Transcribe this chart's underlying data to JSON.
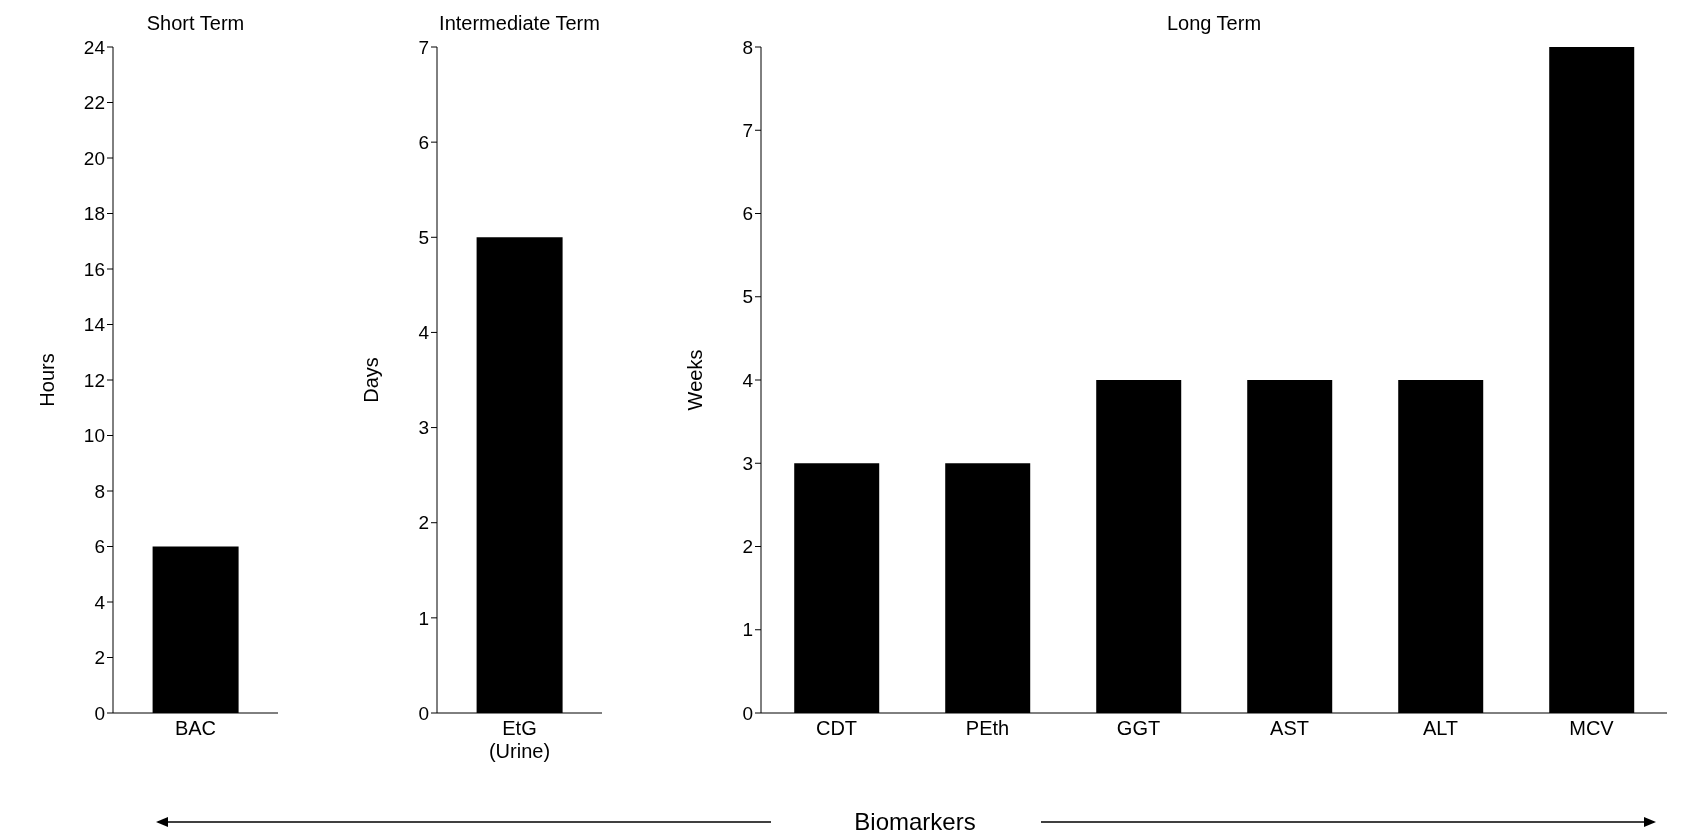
{
  "chart_data": [
    {
      "type": "bar",
      "title": "Short Term",
      "ylabel": "Hours",
      "categories": [
        "BAC"
      ],
      "values": [
        6
      ],
      "color": "#000000",
      "ylim": [
        0,
        24
      ],
      "yticks": [
        0,
        2,
        4,
        6,
        8,
        10,
        12,
        14,
        16,
        18,
        20,
        22,
        24
      ]
    },
    {
      "type": "bar",
      "title": "Intermediate Term",
      "ylabel": "Days",
      "categories": [
        "EtG (Urine)"
      ],
      "values": [
        5
      ],
      "color": "#000000",
      "ylim": [
        0,
        7
      ],
      "yticks": [
        0,
        1,
        2,
        3,
        4,
        5,
        6,
        7
      ]
    },
    {
      "type": "bar",
      "title": "Long Term",
      "ylabel": "Weeks",
      "categories": [
        "CDT",
        "PEth",
        "GGT",
        "AST",
        "ALT",
        "MCV"
      ],
      "values": [
        3,
        3,
        4,
        4,
        4,
        8
      ],
      "color": "#000000",
      "ylim": [
        0,
        8
      ],
      "yticks": [
        0,
        1,
        2,
        3,
        4,
        5,
        6,
        7,
        8
      ],
      "annotations": [
        "Biomarkers"
      ]
    }
  ]
}
